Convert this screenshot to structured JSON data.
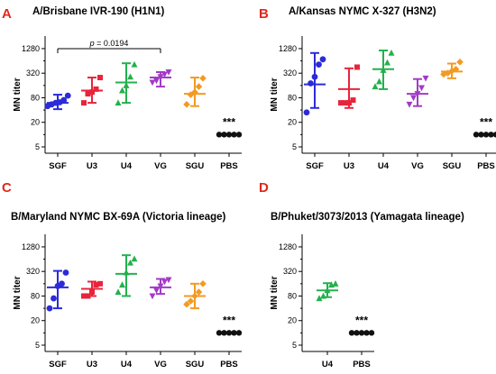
{
  "chart_data": [
    {
      "panel_label": "A",
      "type": "scatter",
      "title": "A/Brisbane IVR-190 (H1N1)",
      "ylabel": "MN titer",
      "yscale": "log2",
      "ytick_labels": [
        "5",
        "20",
        "80",
        "320",
        "1280"
      ],
      "ylim": [
        3.5,
        2600
      ],
      "categories": [
        "SGF",
        "U3",
        "U4",
        "VG",
        "SGU",
        "PBS"
      ],
      "series": [
        {
          "name": "SGF",
          "color": "#2b2bd9",
          "points": [
            50,
            55,
            60,
            62,
            70,
            90
          ],
          "mean": 60,
          "sd": [
            42,
            95
          ]
        },
        {
          "name": "U3",
          "color": "#e8243c",
          "points": [
            60,
            100,
            110,
            130,
            250
          ],
          "mean": 120,
          "sd": [
            60,
            250
          ]
        },
        {
          "name": "U4",
          "color": "#22b14c",
          "points": [
            60,
            120,
            160,
            260,
            520
          ],
          "mean": 190,
          "sd": [
            60,
            560
          ]
        },
        {
          "name": "VG",
          "color": "#a33ac7",
          "points": [
            190,
            210,
            260,
            300,
            340
          ],
          "mean": 250,
          "sd": [
            150,
            340
          ]
        },
        {
          "name": "SGU",
          "color": "#f39a22",
          "points": [
            55,
            95,
            110,
            150,
            240
          ],
          "mean": 100,
          "sd": [
            50,
            250
          ]
        },
        {
          "name": "PBS",
          "color": "#111111",
          "points": [
            10,
            10,
            10,
            10,
            10
          ],
          "mean": 10,
          "sd": [
            10,
            10
          ]
        }
      ],
      "annotations": [
        {
          "text": "***",
          "category": "PBS"
        }
      ],
      "comparison": {
        "from": "SGF",
        "to": "VG",
        "text": "p = 0.0194"
      }
    },
    {
      "panel_label": "B",
      "type": "scatter",
      "title": "A/Kansas NYMC X-327 (H3N2)",
      "ylabel": "MN titer",
      "yscale": "log2",
      "ytick_labels": [
        "5",
        "20",
        "80",
        "320",
        "1280"
      ],
      "ylim": [
        3.5,
        2600
      ],
      "categories": [
        "SGF",
        "U3",
        "U4",
        "VG",
        "SGU",
        "PBS"
      ],
      "series": [
        {
          "name": "SGF",
          "color": "#2b2bd9",
          "points": [
            35,
            180,
            260,
            520,
            700
          ],
          "mean": 170,
          "sd": [
            45,
            1000
          ]
        },
        {
          "name": "U3",
          "color": "#e8243c",
          "points": [
            60,
            60,
            60,
            70,
            450
          ],
          "mean": 130,
          "sd": [
            45,
            420
          ]
        },
        {
          "name": "U4",
          "color": "#22b14c",
          "points": [
            150,
            200,
            380,
            580,
            1000
          ],
          "mean": 400,
          "sd": [
            130,
            1150
          ]
        },
        {
          "name": "VG",
          "color": "#a33ac7",
          "points": [
            55,
            80,
            100,
            140,
            240
          ],
          "mean": 100,
          "sd": [
            50,
            230
          ]
        },
        {
          "name": "SGU",
          "color": "#f39a22",
          "points": [
            300,
            320,
            360,
            400,
            600
          ],
          "mean": 350,
          "sd": [
            240,
            550
          ]
        },
        {
          "name": "PBS",
          "color": "#111111",
          "points": [
            10,
            10,
            10,
            10,
            10
          ],
          "mean": 10,
          "sd": [
            10,
            10
          ]
        }
      ],
      "annotations": [
        {
          "text": "***",
          "category": "PBS"
        }
      ]
    },
    {
      "panel_label": "C",
      "type": "scatter",
      "title": "B/Maryland NYMC BX-69A (Victoria lineage)",
      "ylabel": "MN titer",
      "yscale": "log2",
      "ytick_labels": [
        "5",
        "20",
        "80",
        "320",
        "1280"
      ],
      "ylim": [
        3.5,
        2600
      ],
      "categories": [
        "SGF",
        "U3",
        "U4",
        "VG",
        "SGU",
        "PBS"
      ],
      "series": [
        {
          "name": "SGF",
          "color": "#2b2bd9",
          "points": [
            40,
            70,
            140,
            160,
            300
          ],
          "mean": 130,
          "sd": [
            40,
            330
          ]
        },
        {
          "name": "U3",
          "color": "#e8243c",
          "points": [
            80,
            80,
            100,
            150,
            160
          ],
          "mean": 120,
          "sd": [
            80,
            180
          ]
        },
        {
          "name": "U4",
          "color": "#22b14c",
          "points": [
            100,
            150,
            300,
            520,
            650
          ],
          "mean": 280,
          "sd": [
            80,
            800
          ]
        },
        {
          "name": "VG",
          "color": "#a33ac7",
          "points": [
            80,
            110,
            140,
            180,
            200
          ],
          "mean": 130,
          "sd": [
            90,
            210
          ]
        },
        {
          "name": "SGU",
          "color": "#f39a22",
          "points": [
            50,
            60,
            80,
            100,
            160
          ],
          "mean": 80,
          "sd": [
            40,
            160
          ]
        },
        {
          "name": "PBS",
          "color": "#111111",
          "points": [
            10,
            10,
            10,
            10,
            10
          ],
          "mean": 10,
          "sd": [
            10,
            10
          ]
        }
      ],
      "annotations": [
        {
          "text": "***",
          "category": "PBS"
        }
      ]
    },
    {
      "panel_label": "D",
      "type": "scatter",
      "title": "B/Phuket/3073/2013 (Yamagata lineage)",
      "ylabel": "MN titer",
      "yscale": "log2",
      "ytick_labels": [
        "5",
        "20",
        "80",
        "320",
        "1280"
      ],
      "ylim": [
        3.5,
        2600
      ],
      "categories": [
        "U4",
        "PBS"
      ],
      "series": [
        {
          "name": "U4",
          "color": "#22b14c",
          "points": [
            70,
            80,
            110,
            150,
            160
          ],
          "mean": 110,
          "sd": [
            75,
            165
          ]
        },
        {
          "name": "PBS",
          "color": "#111111",
          "points": [
            10,
            10,
            10,
            10,
            10
          ],
          "mean": 10,
          "sd": [
            10,
            10
          ]
        }
      ],
      "annotations": [
        {
          "text": "***",
          "category": "PBS"
        }
      ]
    }
  ]
}
